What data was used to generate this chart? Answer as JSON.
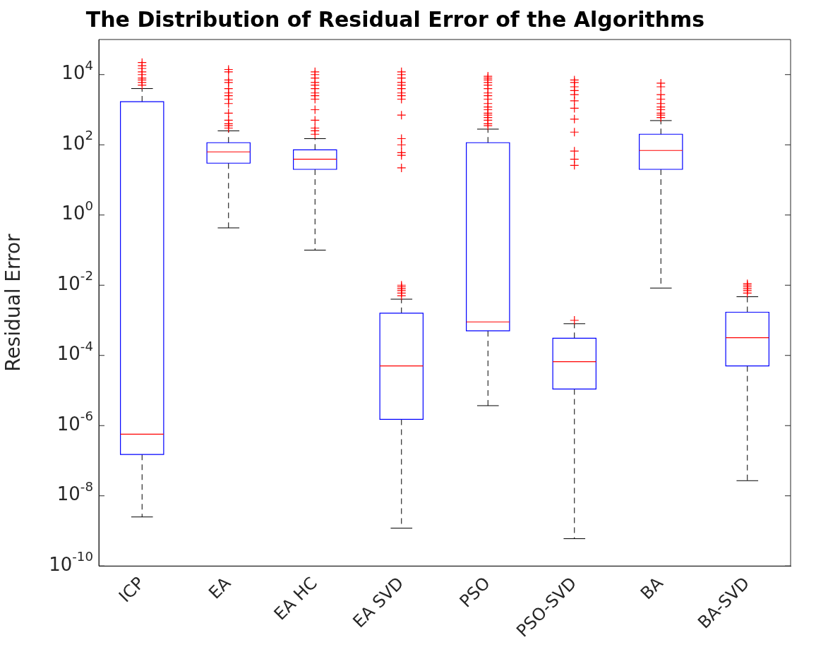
{
  "chart_data": {
    "type": "box",
    "title": "The Distribution of Residual Error of the Algorithms",
    "ylabel": "Residual Error",
    "categories": [
      "ICP",
      "EA",
      "EA HC",
      "EA SVD",
      "PSO",
      "PSO-SVD",
      "BA",
      "BA-SVD"
    ],
    "series": [
      {
        "color": "#0000ff",
        "boxes": [
          {
            "low": 2.5e-09,
            "q1": 1.5e-07,
            "median": 5.7e-07,
            "q3": 1700,
            "high": 4000,
            "outliers": [
              22000,
              18000,
              15000,
              12000,
              10000,
              8000,
              7000,
              6000,
              5000
            ]
          },
          {
            "low": 0.43,
            "q1": 30,
            "median": 63,
            "q3": 115,
            "high": 250,
            "outliers": [
              14000,
              12000,
              7000,
              6000,
              4000,
              3000,
              2500,
              2000,
              1500,
              800,
              500,
              400,
              350,
              300
            ]
          },
          {
            "low": 0.1,
            "q1": 20,
            "median": 39,
            "q3": 72,
            "high": 150,
            "outliers": [
              12000,
              10000,
              8000,
              6000,
              5000,
              4000,
              3000,
              2500,
              2000,
              1000,
              500,
              300,
              250,
              200
            ]
          },
          {
            "low": 1.2e-09,
            "q1": 1.5e-06,
            "median": 5e-05,
            "q3": 0.0016,
            "high": 0.004,
            "outliers": [
              12000,
              10000,
              8000,
              6000,
              5000,
              4000,
              3000,
              2500,
              2000,
              700,
              150,
              100,
              60,
              50,
              22,
              0.01,
              0.009,
              0.008,
              0.007,
              0.006,
              0.005
            ]
          },
          {
            "low": 3.7e-06,
            "q1": 0.0005,
            "median": 0.0009,
            "q3": 115,
            "high": 280,
            "outliers": [
              9000,
              8000,
              7000,
              6000,
              5000,
              4000,
              3000,
              2500,
              2000,
              1500,
              1200,
              1000,
              800,
              700,
              600,
              500,
              400,
              350
            ]
          },
          {
            "low": 6e-10,
            "q1": 1.1e-05,
            "median": 6.6e-05,
            "q3": 0.00031,
            "high": 0.0008,
            "outliers": [
              7000,
              6000,
              4500,
              3500,
              2700,
              1800,
              1100,
              540,
              230,
              66,
              39,
              26,
              0.001
            ]
          },
          {
            "low": 0.0083,
            "q1": 20,
            "median": 69,
            "q3": 200,
            "high": 490,
            "outliers": [
              5700,
              4500,
              2700,
              2000,
              1500,
              1200,
              1000,
              800,
              700,
              600
            ]
          },
          {
            "low": 2.7e-08,
            "q1": 5e-05,
            "median": 0.00032,
            "q3": 0.0017,
            "high": 0.0047,
            "outliers": [
              0.011,
              0.01,
              0.009,
              0.008,
              0.007,
              0.006
            ]
          }
        ]
      }
    ],
    "log": true,
    "ylim": [
      1e-10,
      100000
    ],
    "yticks": [
      {
        "value": 1e-10,
        "label": "10$^{-10}$"
      },
      {
        "value": 1e-08,
        "label": "10$^{-8}$"
      },
      {
        "value": 1e-06,
        "label": "10$^{-6}$"
      },
      {
        "value": 0.0001,
        "label": "10$^{-4}$"
      },
      {
        "value": 0.01,
        "label": "10$^{-2}$"
      },
      {
        "value": 1,
        "label": "10$^{0}$"
      },
      {
        "value": 100,
        "label": "10$^{2}$"
      },
      {
        "value": 10000,
        "label": "10$^{4}$"
      }
    ],
    "grid": false,
    "marker": "cross"
  }
}
